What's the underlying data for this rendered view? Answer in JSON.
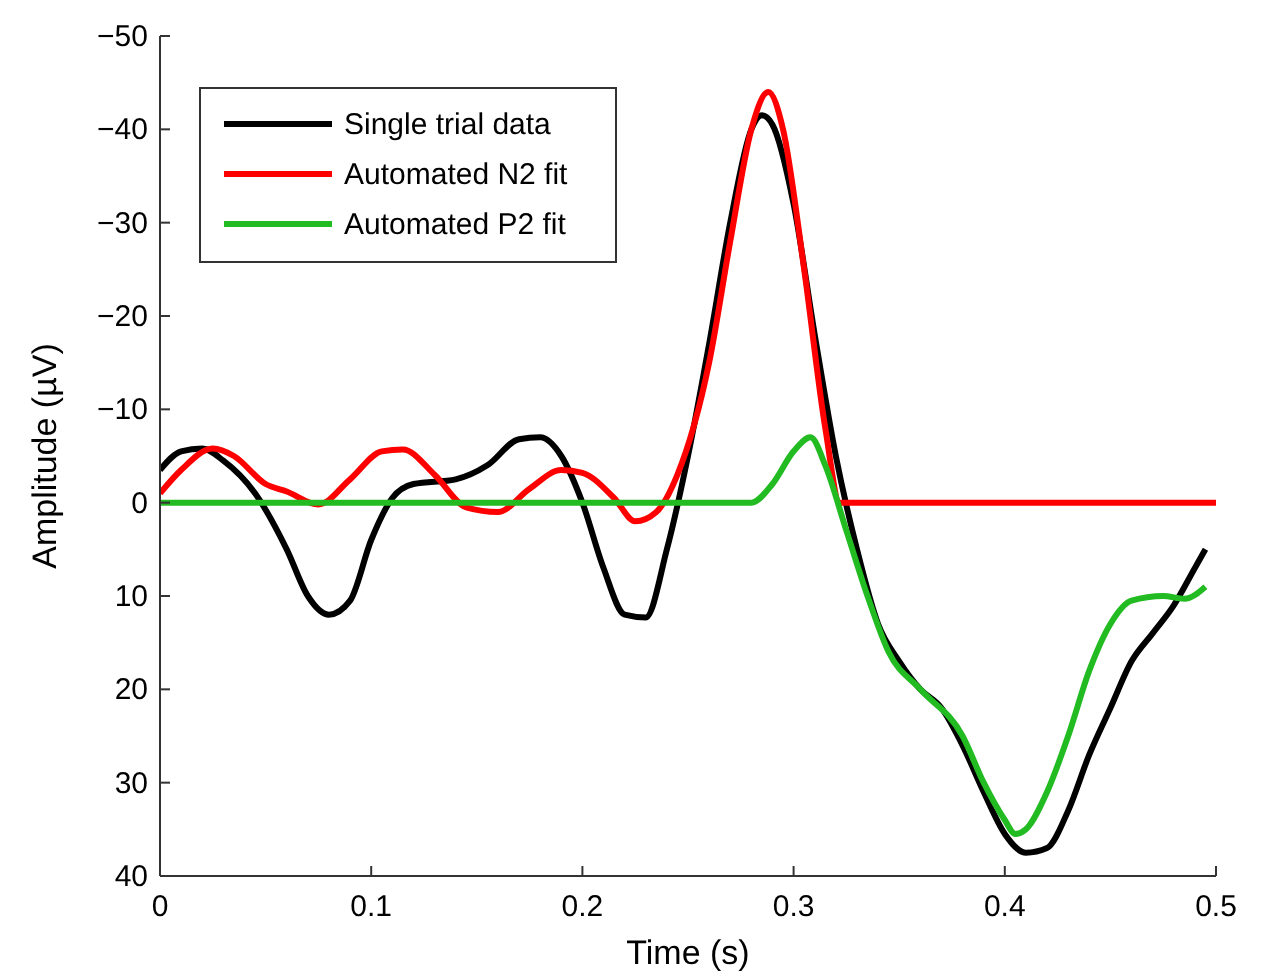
{
  "chart_data": {
    "type": "line",
    "xlabel": "Time (s)",
    "ylabel": "Amplitude (µV)",
    "xlim": [
      0,
      0.5
    ],
    "xticks": [
      0,
      0.1,
      0.2,
      0.3,
      0.4,
      0.5
    ],
    "ylim": [
      40,
      -50
    ],
    "yticks": [
      -50,
      -40,
      -30,
      -20,
      -10,
      0,
      10,
      20,
      30,
      40
    ],
    "grid": false,
    "legend": "top left",
    "line_style": "solid",
    "series": [
      {
        "name": "Single trial data",
        "color": "#000000",
        "x": [
          0,
          0.01,
          0.02,
          0.03,
          0.045,
          0.06,
          0.07,
          0.08,
          0.09,
          0.1,
          0.11,
          0.12,
          0.14,
          0.155,
          0.17,
          0.18,
          0.19,
          0.2,
          0.21,
          0.22,
          0.23,
          0.24,
          0.25,
          0.26,
          0.27,
          0.28,
          0.285,
          0.29,
          0.3,
          0.31,
          0.32,
          0.33,
          0.34,
          0.35,
          0.36,
          0.37,
          0.38,
          0.39,
          0.4,
          0.41,
          0.42,
          0.43,
          0.44,
          0.45,
          0.46,
          0.47,
          0.48,
          0.49,
          0.495
        ],
        "values": [
          -3.5,
          -5.5,
          -5.8,
          -4.5,
          -1,
          5,
          10,
          12,
          10.5,
          4,
          -0.5,
          -2,
          -2.5,
          -4,
          -6.8,
          -7,
          -5,
          0,
          7,
          12,
          12.3,
          5,
          -5,
          -17,
          -30,
          -40,
          -41.5,
          -40.5,
          -32,
          -18,
          -5,
          5,
          13,
          17,
          20,
          22,
          26,
          31,
          35.5,
          37.5,
          37,
          33,
          27,
          22,
          17,
          14,
          11,
          7,
          5
        ]
      },
      {
        "name": "Automated N2 fit",
        "color": "#ff0000",
        "x": [
          0,
          0.01,
          0.025,
          0.035,
          0.05,
          0.06,
          0.075,
          0.09,
          0.105,
          0.115,
          0.13,
          0.145,
          0.16,
          0.175,
          0.19,
          0.2,
          0.215,
          0.225,
          0.235,
          0.245,
          0.26,
          0.27,
          0.28,
          0.288,
          0.295,
          0.305,
          0.315,
          0.322,
          0.5
        ],
        "values": [
          -1,
          -3.5,
          -5.8,
          -5,
          -2,
          -1.2,
          0.2,
          -2.5,
          -5.5,
          -5.7,
          -3,
          0.5,
          1,
          -1.5,
          -3.5,
          -3.2,
          -0.5,
          2,
          1,
          -3,
          -15,
          -28,
          -40,
          -44,
          -40,
          -25,
          -8,
          0,
          0
        ]
      },
      {
        "name": "Automated P2 fit",
        "color": "#22bb22",
        "x": [
          0,
          0.28,
          0.29,
          0.3,
          0.308,
          0.315,
          0.325,
          0.335,
          0.345,
          0.36,
          0.38,
          0.39,
          0.4,
          0.405,
          0.41,
          0.42,
          0.43,
          0.44,
          0.45,
          0.46,
          0.475,
          0.485,
          0.495
        ],
        "values": [
          0,
          0,
          -2,
          -5.5,
          -7,
          -4,
          3,
          10,
          16,
          20,
          25,
          30,
          34,
          35.5,
          35,
          31,
          25,
          18,
          13,
          10.5,
          10,
          10.3,
          9
        ]
      }
    ]
  }
}
